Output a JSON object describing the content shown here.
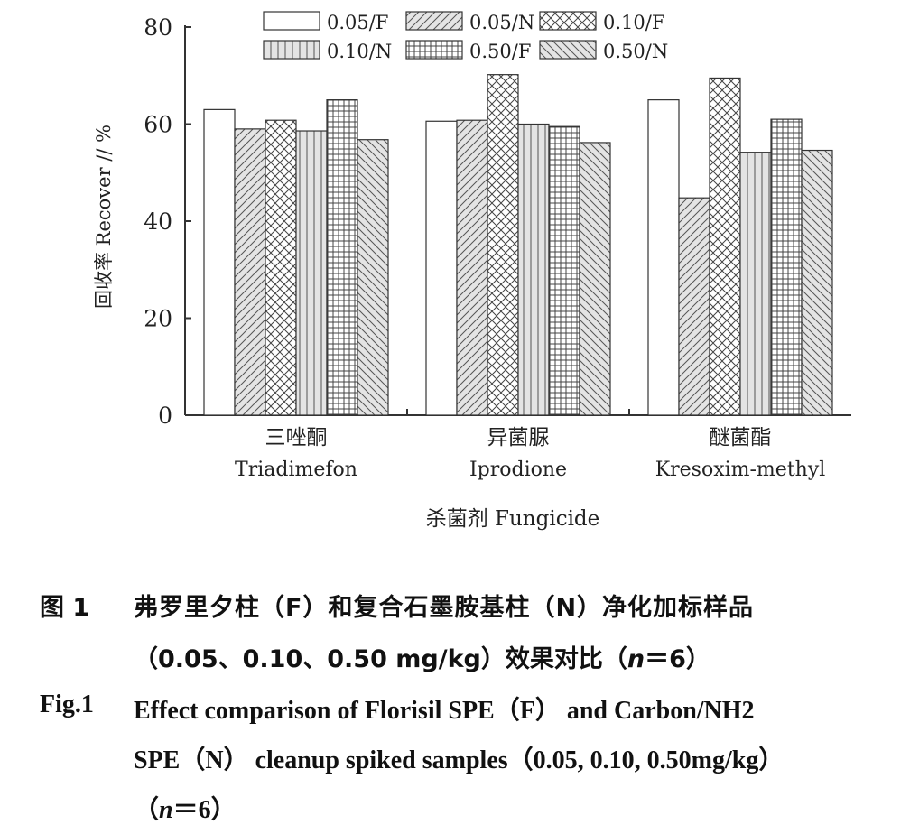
{
  "chart_data": {
    "type": "bar",
    "title": "",
    "xlabel": "杀菌剂 Fungicide",
    "ylabel": "回收率 Recover // %",
    "ylim": [
      0,
      80
    ],
    "yticks": [
      "0",
      "20",
      "40",
      "60",
      "80"
    ],
    "categories": [
      {
        "cn": "三唑酮",
        "en": "Triadimefon"
      },
      {
        "cn": "异菌脲",
        "en": "Iprodione"
      },
      {
        "cn": "醚菌酯",
        "en": "Kresoxim-methyl"
      }
    ],
    "series": [
      {
        "name": "0.05/F",
        "pattern": "blank",
        "values": [
          63.0,
          60.6,
          65.0
        ]
      },
      {
        "name": "0.05/N",
        "pattern": "diag-right",
        "values": [
          59.0,
          60.8,
          44.8
        ]
      },
      {
        "name": "0.10/F",
        "pattern": "cross-diag",
        "values": [
          60.8,
          70.2,
          69.5
        ]
      },
      {
        "name": "0.10/N",
        "pattern": "vertical",
        "values": [
          58.6,
          60.0,
          54.2
        ]
      },
      {
        "name": "0.50/F",
        "pattern": "grid",
        "values": [
          65.0,
          59.5,
          61.0
        ]
      },
      {
        "name": "0.50/N",
        "pattern": "diag-left",
        "values": [
          56.8,
          56.2,
          54.6
        ]
      }
    ],
    "legend_position": "top-center",
    "grid": false
  },
  "caption": {
    "cn_label": "图 1",
    "cn_line1": "弗罗里夕柱（F）和复合石墨胺基柱（N）净化加标样品",
    "cn_line2_a": "（0.05、0.10、0.50 mg/kg）效果对比（",
    "n_var": "n",
    "n_eq": "＝6）",
    "en_label": "Fig.1",
    "en_line1": "Effect comparison of Florisil SPE（F） and Carbon/NH2",
    "en_line2": "SPE（N） cleanup spiked samples（0.05, 0.10, 0.50mg/kg）",
    "en_line3_a": "（",
    "en_line3_b": "＝6）"
  }
}
